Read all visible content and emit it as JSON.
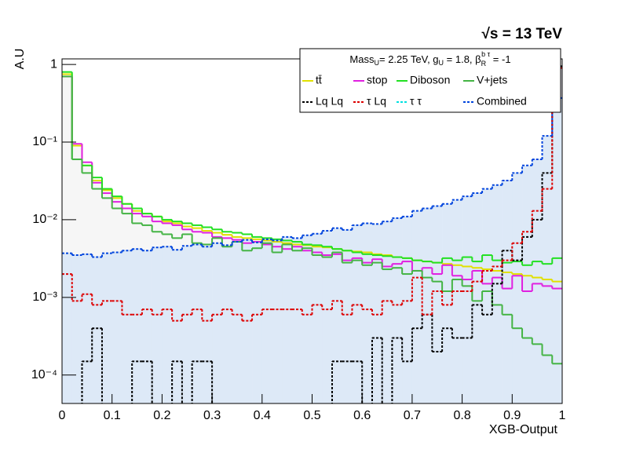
{
  "chart_data": {
    "type": "histogram",
    "energy_label": "√s = 13 TeV",
    "ylabel": "A.U",
    "xlabel": "XGB-Output",
    "log_y": true,
    "legend_title": [
      "Mass",
      "U",
      "= 2.25 TeV, g",
      "U",
      " = 1.8, β",
      "R",
      "b τ",
      " = -1"
    ],
    "xlim": [
      0,
      1
    ],
    "ylim": [
      4.3e-05,
      1.18
    ],
    "xticks": [
      0,
      0.1,
      0.2,
      0.3,
      0.4,
      0.5,
      0.6,
      0.7,
      0.8,
      0.9,
      1
    ],
    "yticks": [
      {
        "value": 0.0001,
        "label": "10⁻⁴"
      },
      {
        "value": 0.001,
        "label": "10⁻³"
      },
      {
        "value": 0.01,
        "label": "10⁻²"
      },
      {
        "value": 0.1,
        "label": "10⁻¹"
      },
      1
    ],
    "bins": [
      0,
      0.02,
      0.04,
      0.06,
      0.08,
      0.1,
      0.12,
      0.14,
      0.16,
      0.18,
      0.2,
      0.22,
      0.24,
      0.26,
      0.28,
      0.3,
      0.32,
      0.34,
      0.36,
      0.38,
      0.4,
      0.42,
      0.44,
      0.46,
      0.48,
      0.5,
      0.52,
      0.54,
      0.56,
      0.58,
      0.6,
      0.62,
      0.64,
      0.66,
      0.68,
      0.7,
      0.72,
      0.74,
      0.76,
      0.78,
      0.8,
      0.82,
      0.84,
      0.86,
      0.88,
      0.9,
      0.92,
      0.94,
      0.96,
      0.98,
      1
    ],
    "series": [
      {
        "name": "tt̄",
        "color": "#e0e000",
        "fill": "#f6f6f6",
        "dash": false,
        "values": [
          0.75,
          0.09,
          0.05,
          0.032,
          0.024,
          0.019,
          0.016,
          0.013,
          0.012,
          0.011,
          0.0095,
          0.009,
          0.0082,
          0.0078,
          0.0072,
          0.0068,
          0.0064,
          0.006,
          0.0058,
          0.0056,
          0.0054,
          0.0052,
          0.005,
          0.0048,
          0.0047,
          0.0045,
          0.0044,
          0.0042,
          0.004,
          0.0039,
          0.0038,
          0.0036,
          0.0035,
          0.0033,
          0.0032,
          0.003,
          0.0029,
          0.0028,
          0.0027,
          0.0026,
          0.0025,
          0.0024,
          0.0023,
          0.0022,
          0.0021,
          0.002,
          0.0019,
          0.0018,
          0.0017,
          0.0016
        ]
      },
      {
        "name": "stop",
        "color": "#e020e0",
        "dash": false,
        "values": [
          0.7,
          0.095,
          0.055,
          0.03,
          0.022,
          0.017,
          0.014,
          0.012,
          0.011,
          0.0095,
          0.009,
          0.0085,
          0.0075,
          0.007,
          0.0068,
          0.006,
          0.0058,
          0.0055,
          0.005,
          0.0052,
          0.0048,
          0.0045,
          0.0042,
          0.0045,
          0.004,
          0.0038,
          0.0035,
          0.0036,
          0.003,
          0.0032,
          0.0028,
          0.0031,
          0.0025,
          0.0027,
          0.0029,
          0.0022,
          0.0024,
          0.002,
          0.0026,
          0.0019,
          0.0017,
          0.0022,
          0.0015,
          0.0018,
          0.0013,
          0.0019,
          0.0012,
          0.0015,
          0.0014,
          0.0013
        ]
      },
      {
        "name": "Diboson",
        "color": "#22e022",
        "dash": false,
        "values": [
          0.8,
          0.06,
          0.05,
          0.035,
          0.025,
          0.02,
          0.016,
          0.014,
          0.012,
          0.011,
          0.01,
          0.0095,
          0.009,
          0.0085,
          0.008,
          0.0075,
          0.007,
          0.0068,
          0.0065,
          0.006,
          0.0058,
          0.0056,
          0.0054,
          0.0052,
          0.0048,
          0.0047,
          0.0045,
          0.0042,
          0.004,
          0.0038,
          0.0036,
          0.0035,
          0.0034,
          0.0033,
          0.0032,
          0.003,
          0.0029,
          0.0028,
          0.0032,
          0.003,
          0.0033,
          0.0029,
          0.0035,
          0.003,
          0.0028,
          0.0029,
          0.0026,
          0.0029,
          0.0027,
          0.0032
        ]
      },
      {
        "name": "V+jets",
        "color": "#44b444",
        "dash": false,
        "values": [
          0.7,
          0.06,
          0.04,
          0.025,
          0.019,
          0.014,
          0.012,
          0.009,
          0.0085,
          0.007,
          0.0065,
          0.0058,
          0.0065,
          0.005,
          0.0048,
          0.0058,
          0.0045,
          0.0052,
          0.004,
          0.0043,
          0.005,
          0.0038,
          0.0048,
          0.004,
          0.0043,
          0.0035,
          0.0033,
          0.0038,
          0.0028,
          0.003,
          0.0026,
          0.0028,
          0.0023,
          0.0024,
          0.002,
          0.0022,
          0.0018,
          0.0016,
          0.0012,
          0.0017,
          0.0014,
          0.0009,
          0.0012,
          0.0008,
          0.0006,
          0.0004,
          0.0003,
          0.00025,
          0.00018,
          0.00014
        ]
      },
      {
        "name": "Lq Lq",
        "color": "#000000",
        "fill": "#d6d6e2",
        "dash": true,
        "values": [
          0,
          0,
          0.00015,
          0.0004,
          0,
          0,
          0,
          0.00015,
          0.00015,
          0,
          0,
          0.00015,
          0,
          0.00015,
          0.00015,
          0,
          0,
          0,
          0,
          0,
          0,
          0,
          0,
          0,
          0,
          0,
          0,
          0.00015,
          0.00015,
          0.00015,
          0,
          0.0003,
          0,
          0.0003,
          0.00015,
          0.0004,
          0.0006,
          0.0002,
          0.0004,
          0.0003,
          0.0003,
          0.0008,
          0.0006,
          0.0015,
          0.004,
          0.003,
          0.006,
          0.01,
          0.04,
          0.95
        ]
      },
      {
        "name": "τ Lq",
        "color": "#dd0000",
        "fill": "#e6e4ee",
        "dash": true,
        "values": [
          0.002,
          0.0009,
          0.0011,
          0.0008,
          0.0009,
          0.0009,
          0.0006,
          0.0006,
          0.0007,
          0.0006,
          0.0007,
          0.0005,
          0.0006,
          0.0007,
          0.0005,
          0.0006,
          0.0007,
          0.0006,
          0.0005,
          0.0006,
          0.0007,
          0.0007,
          0.0007,
          0.0007,
          0.0006,
          0.0008,
          0.0007,
          0.0009,
          0.0006,
          0.0008,
          0.0007,
          0.0006,
          0.0009,
          0.0008,
          0.0009,
          0.0018,
          0.0006,
          0.0012,
          0.0008,
          0.0012,
          0.0012,
          0.0016,
          0.0022,
          0.0025,
          0.003,
          0.005,
          0.007,
          0.013,
          0.025,
          0.9
        ]
      },
      {
        "name": "τ τ",
        "color": "#00e0e0",
        "dash": true,
        "values": [
          null,
          null,
          null,
          null,
          null,
          null,
          null,
          null,
          null,
          null,
          null,
          null,
          null,
          null,
          null,
          null,
          null,
          null,
          null,
          null,
          null,
          null,
          null,
          null,
          null,
          null,
          null,
          null,
          null,
          null,
          null,
          null,
          null,
          null,
          null,
          null,
          null,
          null,
          null,
          null,
          null,
          null,
          null,
          null,
          null,
          null,
          null,
          null,
          null,
          null
        ]
      },
      {
        "name": "Combined",
        "color": "#0044dd",
        "fill": "#dde9f7",
        "dash": true,
        "values": [
          0.0037,
          0.0035,
          0.0036,
          0.0033,
          0.0037,
          0.0038,
          0.004,
          0.0042,
          0.004,
          0.0044,
          0.0045,
          0.0041,
          0.0046,
          0.0048,
          0.0045,
          0.005,
          0.0047,
          0.0052,
          0.0055,
          0.0051,
          0.0056,
          0.0054,
          0.006,
          0.0058,
          0.0063,
          0.0066,
          0.0072,
          0.0078,
          0.0074,
          0.0085,
          0.009,
          0.0088,
          0.0095,
          0.0105,
          0.011,
          0.013,
          0.014,
          0.015,
          0.016,
          0.018,
          0.02,
          0.022,
          0.025,
          0.028,
          0.032,
          0.04,
          0.05,
          0.06,
          0.12,
          0.37
        ]
      }
    ]
  }
}
